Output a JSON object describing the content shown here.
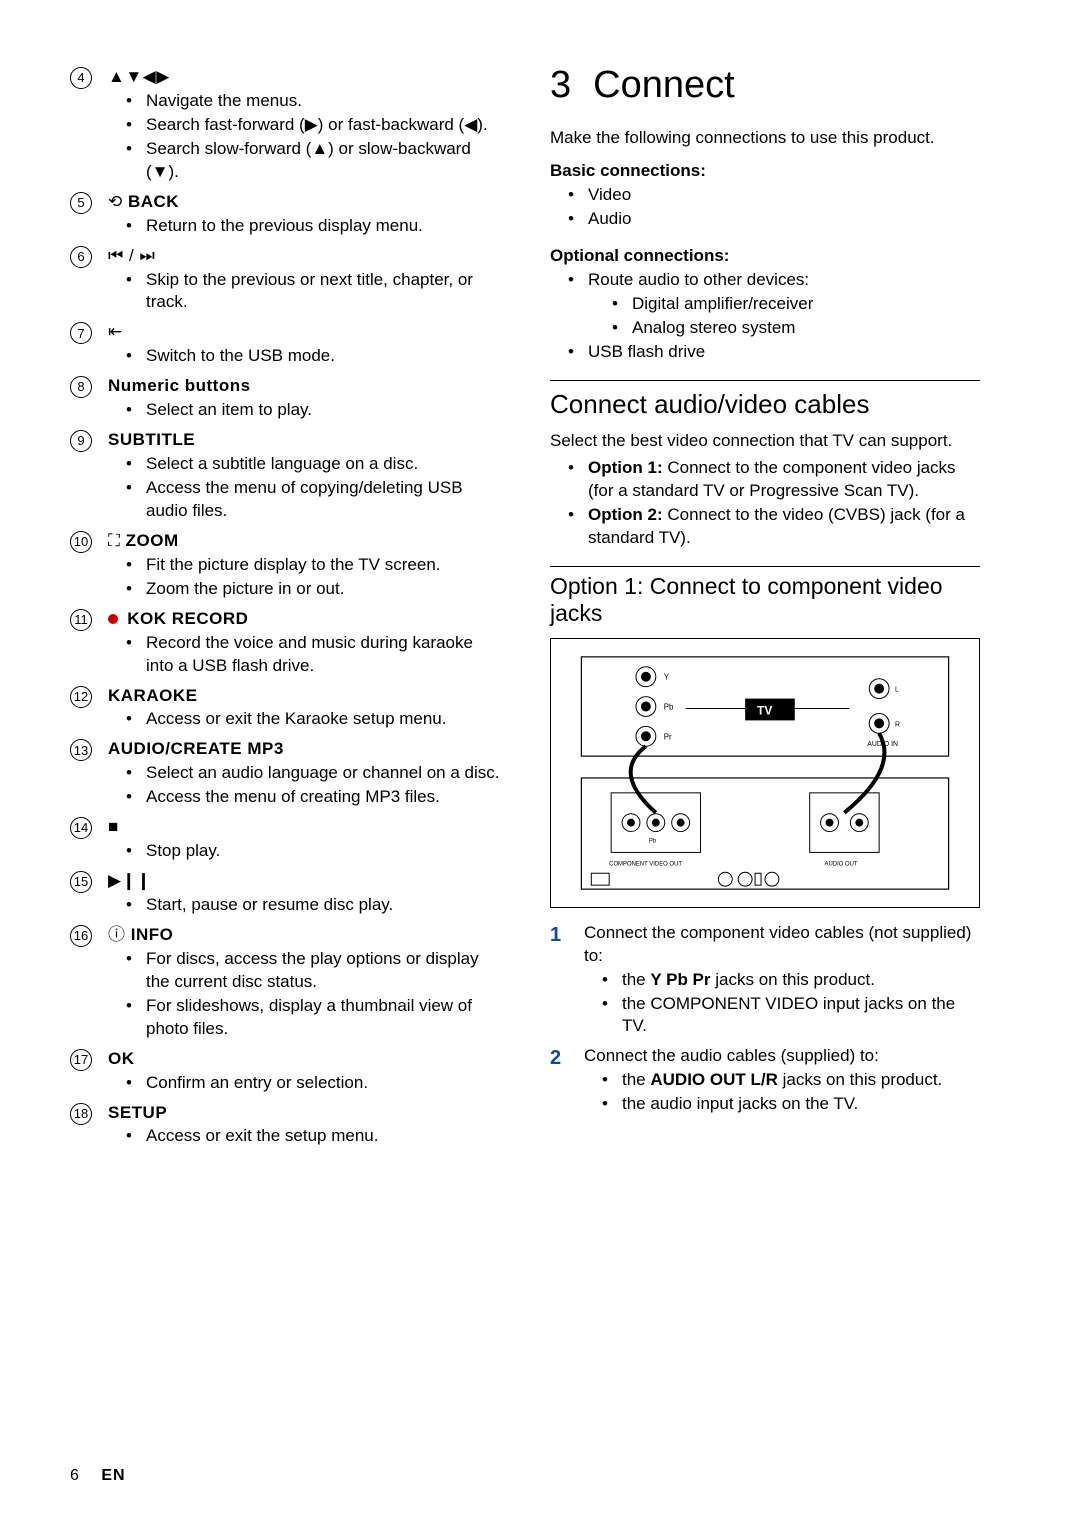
{
  "left": {
    "items": [
      {
        "num": "4",
        "icon": "▲▼◀▶",
        "label": "",
        "bullets": [
          "Navigate the menus.",
          "Search fast-forward (▶) or fast-backward (◀).",
          "Search slow-forward (▲) or slow-backward (▼)."
        ]
      },
      {
        "num": "5",
        "icon": "⟲",
        "label": "BACK",
        "bullets": [
          "Return to the previous display menu."
        ]
      },
      {
        "num": "6",
        "icon": "⏮ / ⏭",
        "label": "",
        "bullets": [
          "Skip to the previous or next title, chapter, or track."
        ]
      },
      {
        "num": "7",
        "icon": "⇤",
        "label": "",
        "bullets": [
          "Switch to the USB mode."
        ]
      },
      {
        "num": "8",
        "icon": "",
        "label": "Numeric buttons",
        "bullets": [
          "Select an item to play."
        ]
      },
      {
        "num": "9",
        "icon": "",
        "label": "SUBTITLE",
        "bullets": [
          "Select a subtitle language on a disc.",
          "Access the menu of copying/deleting USB audio files."
        ]
      },
      {
        "num": "10",
        "icon": "⛶",
        "label": "ZOOM",
        "bullets": [
          "Fit the picture display to the TV screen.",
          "Zoom the picture in or out."
        ]
      },
      {
        "num": "11",
        "icon": "●",
        "label": "KOK RECORD",
        "bullets": [
          "Record the voice and music during karaoke into a USB flash drive."
        ]
      },
      {
        "num": "12",
        "icon": "",
        "label": "KARAOKE",
        "bullets": [
          "Access or exit the Karaoke setup menu."
        ]
      },
      {
        "num": "13",
        "icon": "",
        "label": "AUDIO/CREATE MP3",
        "bullets": [
          "Select an audio language or channel on a disc.",
          "Access the menu of creating MP3 files."
        ]
      },
      {
        "num": "14",
        "icon": "■",
        "label": "",
        "bullets": [
          "Stop play."
        ]
      },
      {
        "num": "15",
        "icon": "▶❙❙",
        "label": "",
        "bullets": [
          "Start, pause or resume disc play."
        ]
      },
      {
        "num": "16",
        "icon": "ⓘ",
        "label": "INFO",
        "bullets": [
          "For discs, access the play options or display the current disc status.",
          "For slideshows, display a thumbnail view of photo files."
        ]
      },
      {
        "num": "17",
        "icon": "",
        "label": "OK",
        "bullets": [
          "Confirm an entry or selection."
        ]
      },
      {
        "num": "18",
        "icon": "",
        "label": "SETUP",
        "bullets": [
          "Access or exit the setup menu."
        ]
      }
    ]
  },
  "right": {
    "secnum": "3",
    "sectitle": "Connect",
    "intro": "Make the following connections to use this product.",
    "basic_hd": "Basic connections:",
    "basic": [
      "Video",
      "Audio"
    ],
    "opt_hd": "Optional connections:",
    "opt": [
      {
        "text": "Route audio to other devices:",
        "sub": [
          "Digital amplifier/receiver",
          "Analog stereo system"
        ]
      },
      {
        "text": "USB flash drive",
        "sub": []
      }
    ],
    "h2a": "Connect audio/video cables",
    "h2a_intro": "Select the best video connection that TV can support.",
    "options": [
      {
        "bold": "Option 1:",
        "rest": " Connect to the component video jacks (for a standard TV or Progressive Scan TV)."
      },
      {
        "bold": "Option 2:",
        "rest": " Connect to the video (CVBS) jack (for a standard TV)."
      }
    ],
    "h3a": "Option 1: Connect to component video jacks",
    "diagram_labels": {
      "tv": "TV",
      "audio_in": "AUDIO IN",
      "comp_out": "COMPONENT  VIDEO OUT",
      "audio_out": "AUDIO OUT",
      "y": "Y",
      "pb": "Pb",
      "pr": "Pr",
      "r": "R",
      "l": "L"
    },
    "steps": [
      {
        "n": "1",
        "text": "Connect the component video cables (not supplied) to:",
        "sub": [
          {
            "pre": "the ",
            "bold": "Y Pb Pr",
            "post": " jacks on this product."
          },
          {
            "pre": "the COMPONENT VIDEO input jacks on the TV.",
            "bold": "",
            "post": ""
          }
        ]
      },
      {
        "n": "2",
        "text": "Connect the audio cables (supplied) to:",
        "sub": [
          {
            "pre": "the ",
            "bold": "AUDIO OUT L/R",
            "post": "  jacks on this product."
          },
          {
            "pre": "the audio input jacks on the TV.",
            "bold": "",
            "post": ""
          }
        ]
      }
    ]
  },
  "footer": {
    "page": "6",
    "lang": "EN"
  },
  "colors": {
    "step_num": "#0a4aa8",
    "red": "#c00"
  }
}
